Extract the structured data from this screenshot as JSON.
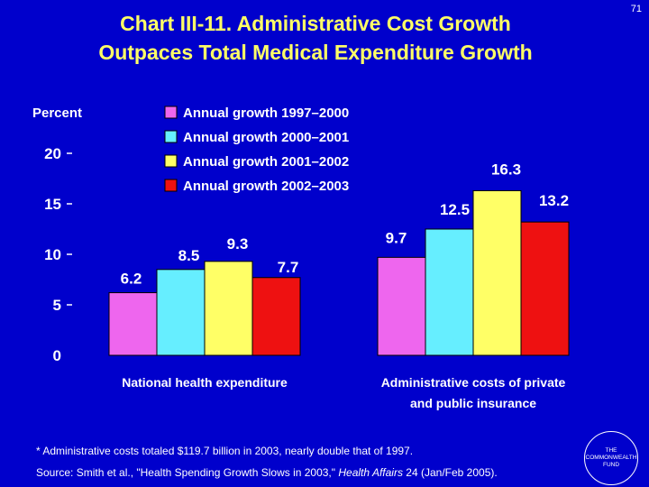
{
  "slide_number": "71",
  "title_line1": "Chart III-11. Administrative Cost Growth",
  "title_line2": "Outpaces Total Medical Expenditure Growth",
  "footnote": "* Administrative costs totaled $119.7 billion in 2003, nearly double that of 1997.",
  "source_prefix": "Source: Smith et al., \"Health Spending Growth Slows in 2003,\" ",
  "source_journal": "Health Affairs",
  "source_suffix": " 24 (Jan/Feb 2005).",
  "logo_lines": [
    "THE",
    "COMMONWEALTH",
    "FUND"
  ],
  "colors": {
    "background": "#0000CC",
    "title": "#FFFF66",
    "text": "#FFFFFF",
    "series": [
      "#EE66EE",
      "#66EEFF",
      "#FFFF66",
      "#EE1111"
    ]
  },
  "chart_data": {
    "type": "bar",
    "ylabel": "Percent",
    "ylim": [
      0,
      20
    ],
    "yticks": [
      0,
      5,
      10,
      15,
      20
    ],
    "categories": [
      [
        "National health expenditure"
      ],
      [
        "Administrative costs of private",
        "and public insurance"
      ]
    ],
    "series": [
      {
        "name": "Annual growth 1997–2000",
        "values": [
          6.2,
          9.7
        ]
      },
      {
        "name": "Annual growth 2000–2001",
        "values": [
          8.5,
          12.5
        ]
      },
      {
        "name": "Annual growth 2001–2002",
        "values": [
          9.3,
          16.3
        ]
      },
      {
        "name": "Annual growth 2002–2003",
        "values": [
          7.7,
          13.2
        ]
      }
    ],
    "legend_position": "top-center"
  }
}
